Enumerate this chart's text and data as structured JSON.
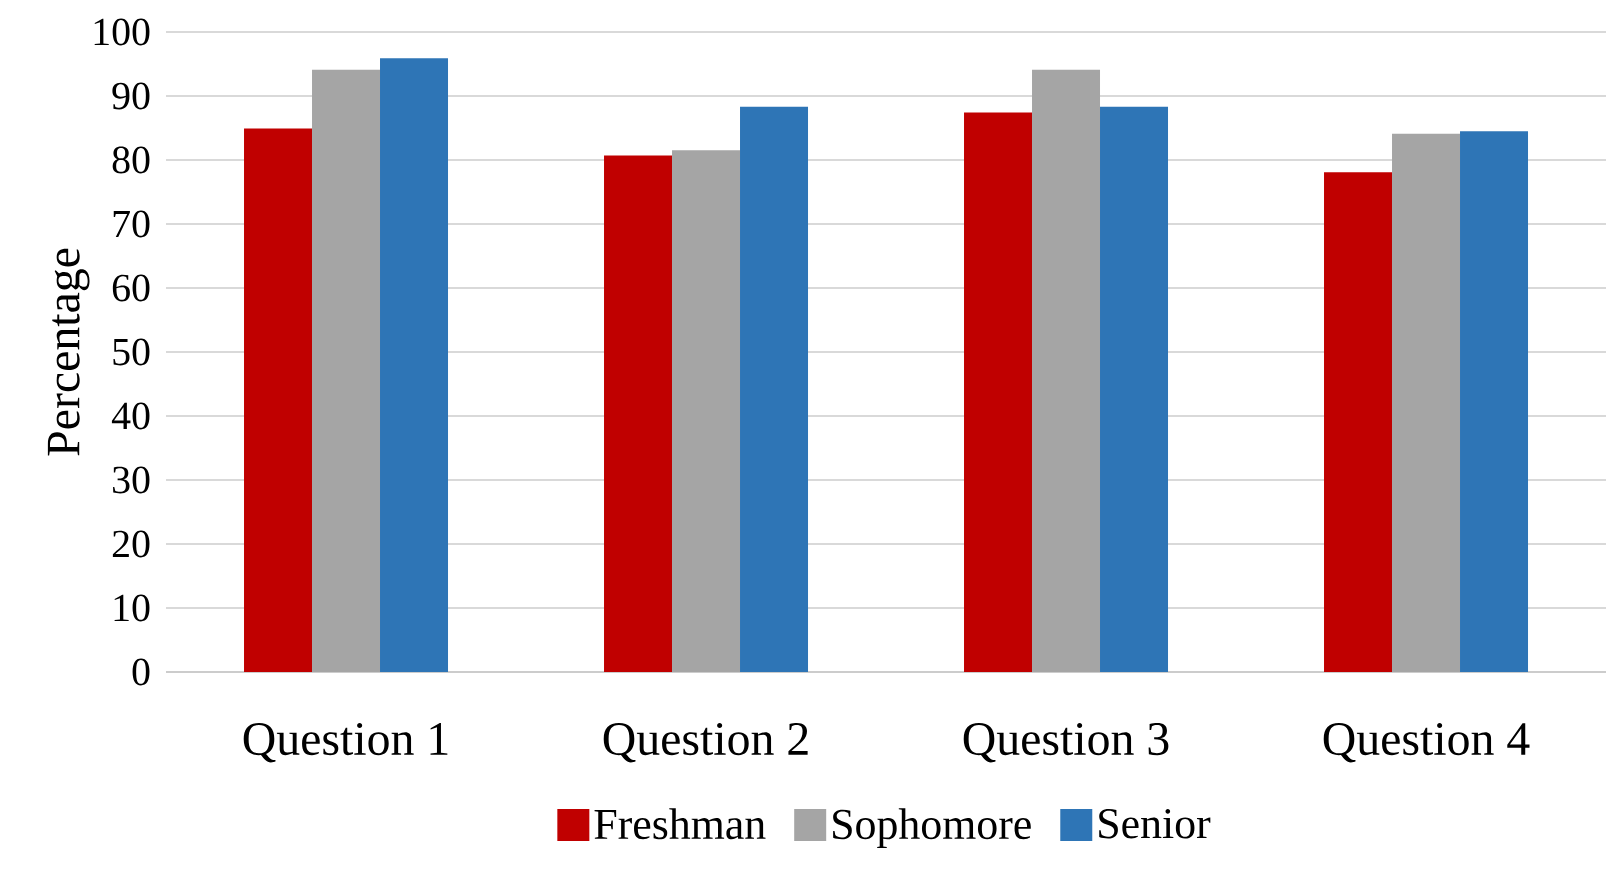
{
  "chart_data": {
    "type": "bar",
    "ylabel": "Percentage",
    "categories": [
      "Question 1",
      "Question 2",
      "Question 3",
      "Question 4"
    ],
    "series": [
      {
        "name": "Freshman",
        "color": "#c00000",
        "values": [
          84.9,
          80.7,
          87.4,
          78.1
        ]
      },
      {
        "name": "Sophomore",
        "color": "#a5a5a5",
        "values": [
          94.1,
          81.5,
          94.1,
          84.1
        ]
      },
      {
        "name": "Senior",
        "color": "#2e75b6",
        "values": [
          95.9,
          88.3,
          88.3,
          84.5
        ]
      }
    ],
    "ylim": [
      0,
      100
    ],
    "yticks": [
      0,
      10,
      20,
      30,
      40,
      50,
      60,
      70,
      80,
      90,
      100
    ],
    "grid": "y",
    "legend": "bottom"
  }
}
